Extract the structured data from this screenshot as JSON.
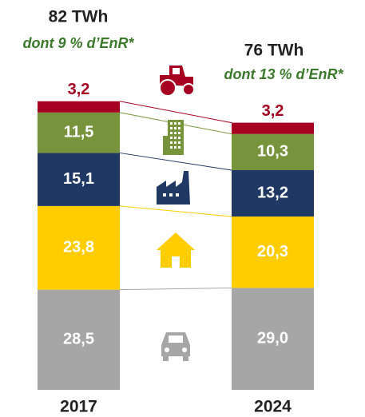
{
  "chart_data": {
    "type": "stacked_bar",
    "categories": [
      "2017",
      "2024"
    ],
    "series": [
      {
        "color": "#a6a6a6",
        "values": [
          28.5,
          29.0
        ],
        "value_labels": [
          "28,5",
          "29,0"
        ]
      },
      {
        "color": "#ffcc00",
        "values": [
          23.8,
          20.3
        ],
        "value_labels": [
          "23,8",
          "20,3"
        ]
      },
      {
        "color": "#1f3864",
        "values": [
          15.1,
          13.2
        ],
        "value_labels": [
          "15,1",
          "13,2"
        ]
      },
      {
        "color": "#77933c",
        "values": [
          11.5,
          10.3
        ],
        "value_labels": [
          "11,5",
          "10,3"
        ]
      },
      {
        "color": "#a50021",
        "values": [
          3.2,
          3.2
        ],
        "value_labels": [
          "3,2",
          "3,2"
        ]
      }
    ],
    "annotations": [
      {
        "total": "82 TWh",
        "note": "dont 9 % d’EnR*"
      },
      {
        "total": "76 TWh",
        "note": "dont 13 % d’EnR*"
      }
    ]
  }
}
